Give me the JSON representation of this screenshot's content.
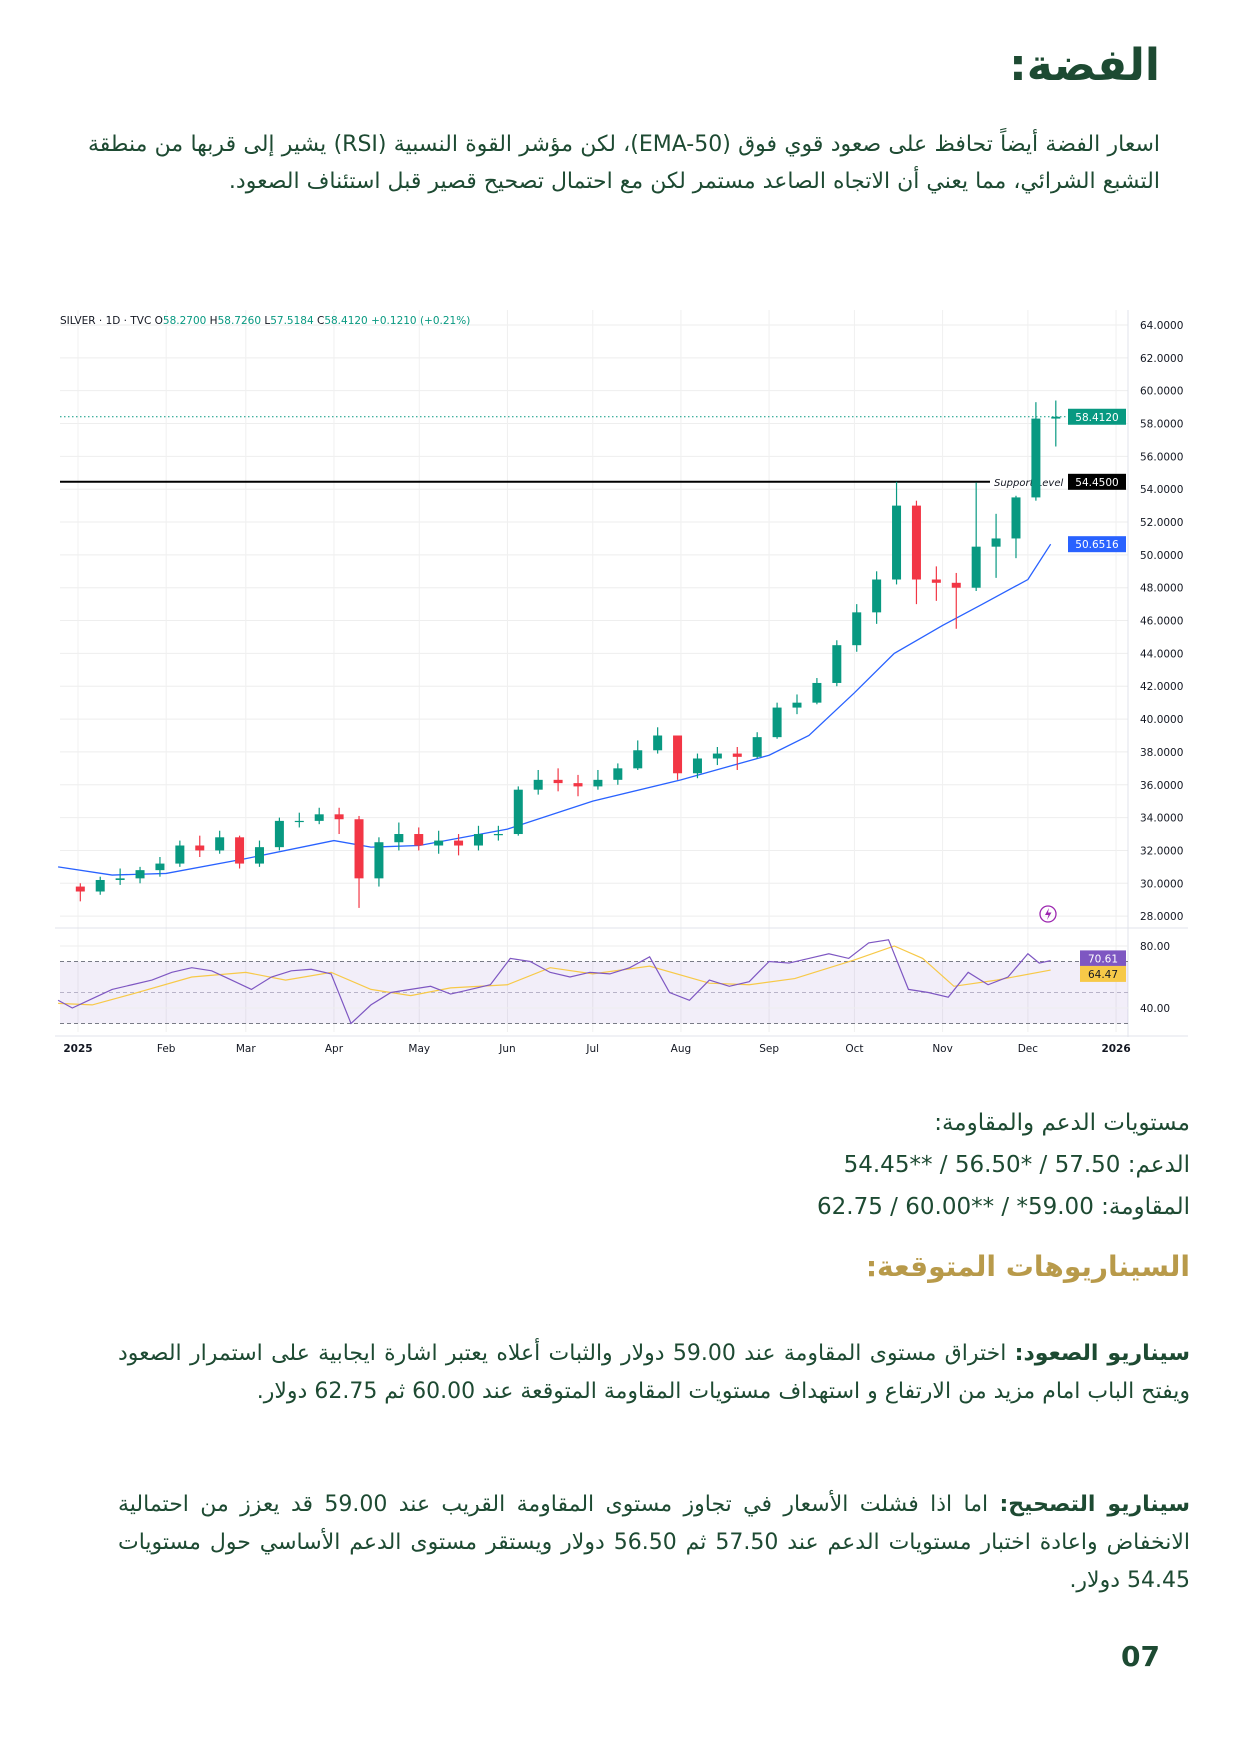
{
  "title": "الفضة:",
  "intro": "اسعار الفضة أيضاً تحافظ على صعود قوي فوق (EMA-50)، لكن مؤشر القوة النسبية (RSI) يشير إلى قربها من منطقة التشبع الشرائي، مما يعني أن الاتجاه الصاعد مستمر لكن مع احتمال تصحيح قصير قبل استئناف الصعود.",
  "levels": {
    "heading": "مستويات الدعم والمقاومة:",
    "support": "الدعم: 57.50 / *56.50 / **54.45",
    "resistance": "المقاومة: 59.00* / **60.00 / 62.75"
  },
  "scenarios_title": "السيناريوهات المتوقعة:",
  "scenarios": [
    {
      "label": "سيناريو الصعود:",
      "text": " اختراق مستوى المقاومة عند 59.00 دولار والثبات أعلاه يعتبر اشارة ايجابية على استمرار الصعود ويفتح الباب امام مزيد من الارتفاع و استهداف مستويات المقاومة المتوقعة عند 60.00 ثم 62.75 دولار."
    },
    {
      "label": "سيناريو التصحيح:",
      "text": " اما اذا فشلت الأسعار في تجاوز مستوى المقاومة القريب عند 59.00 قد يعزز من احتمالية الانخفاض واعادة اختبار مستويات الدعم عند 57.50 ثم 56.50 دولار ويستقر مستوى الدعم الأساسي حول مستويات 54.45 دولار."
    }
  ],
  "page_number": "07",
  "chart_data": {
    "type": "candlestick",
    "header": {
      "symbol": "SILVER · 1D · TVC",
      "o_label": "O",
      "o": "58.2700",
      "h_label": "H",
      "h": "58.7260",
      "l_label": "L",
      "l": "57.5184",
      "c_label": "C",
      "c": "58.4120",
      "change": "+0.1210 (+0.21%)"
    },
    "y_ticks": [
      "64.0000",
      "62.0000",
      "60.0000",
      "58.0000",
      "56.0000",
      "54.0000",
      "52.0000",
      "50.0000",
      "48.0000",
      "46.0000",
      "44.0000",
      "42.0000",
      "40.0000",
      "38.0000",
      "36.0000",
      "34.0000",
      "32.0000",
      "30.0000",
      "28.0000"
    ],
    "ylim": [
      28,
      64
    ],
    "x_ticks": [
      [
        "2025",
        "2025-01-01"
      ],
      [
        "Feb",
        "2025-02-01"
      ],
      [
        "Mar",
        "2025-03-01"
      ],
      [
        "Apr",
        "2025-04-01"
      ],
      [
        "May",
        "2025-05-01"
      ],
      [
        "Jun",
        "2025-06-01"
      ],
      [
        "Jul",
        "2025-07-01"
      ],
      [
        "Aug",
        "2025-08-01"
      ],
      [
        "Sep",
        "2025-09-01"
      ],
      [
        "Oct",
        "2025-10-01"
      ],
      [
        "Nov",
        "2025-11-01"
      ],
      [
        "Dec",
        "2025-12-01"
      ],
      [
        "2026",
        "2026-01-01"
      ]
    ],
    "candles": [
      [
        "2024-12-30",
        29.8,
        30.0,
        28.9,
        29.5
      ],
      [
        "2025-01-06",
        29.5,
        30.4,
        29.3,
        30.2
      ],
      [
        "2025-01-13",
        30.2,
        30.9,
        29.9,
        30.3
      ],
      [
        "2025-01-20",
        30.3,
        31.0,
        30.0,
        30.8
      ],
      [
        "2025-01-27",
        30.8,
        31.6,
        30.4,
        31.2
      ],
      [
        "2025-02-03",
        31.2,
        32.6,
        31.0,
        32.3
      ],
      [
        "2025-02-10",
        32.3,
        32.9,
        31.6,
        32.0
      ],
      [
        "2025-02-17",
        32.0,
        33.2,
        31.8,
        32.8
      ],
      [
        "2025-02-24",
        32.8,
        32.9,
        30.9,
        31.2
      ],
      [
        "2025-03-03",
        31.2,
        32.6,
        31.0,
        32.2
      ],
      [
        "2025-03-10",
        32.2,
        34.0,
        32.0,
        33.8
      ],
      [
        "2025-03-17",
        33.8,
        34.3,
        33.4,
        33.8
      ],
      [
        "2025-03-24",
        33.8,
        34.6,
        33.6,
        34.2
      ],
      [
        "2025-03-31",
        34.2,
        34.6,
        33.0,
        33.9
      ],
      [
        "2025-04-07",
        33.9,
        34.1,
        28.5,
        30.3
      ],
      [
        "2025-04-14",
        30.3,
        32.8,
        29.8,
        32.5
      ],
      [
        "2025-04-21",
        32.5,
        33.7,
        32.0,
        33.0
      ],
      [
        "2025-04-28",
        33.0,
        33.4,
        32.0,
        32.3
      ],
      [
        "2025-05-05",
        32.3,
        33.2,
        31.8,
        32.6
      ],
      [
        "2025-05-12",
        32.6,
        33.0,
        31.7,
        32.3
      ],
      [
        "2025-05-19",
        32.3,
        33.5,
        32.0,
        33.0
      ],
      [
        "2025-05-26",
        33.0,
        33.5,
        32.6,
        33.0
      ],
      [
        "2025-06-02",
        33.0,
        35.9,
        32.9,
        35.7
      ],
      [
        "2025-06-09",
        35.7,
        36.9,
        35.4,
        36.3
      ],
      [
        "2025-06-16",
        36.3,
        37.0,
        35.6,
        36.1
      ],
      [
        "2025-06-23",
        36.1,
        36.6,
        35.3,
        35.9
      ],
      [
        "2025-06-30",
        35.9,
        36.9,
        35.7,
        36.3
      ],
      [
        "2025-07-07",
        36.3,
        37.3,
        36.0,
        37.0
      ],
      [
        "2025-07-14",
        37.0,
        38.7,
        36.9,
        38.1
      ],
      [
        "2025-07-21",
        38.1,
        39.5,
        37.9,
        39.0
      ],
      [
        "2025-07-28",
        39.0,
        39.0,
        36.3,
        36.7
      ],
      [
        "2025-08-04",
        36.7,
        37.9,
        36.4,
        37.6
      ],
      [
        "2025-08-11",
        37.6,
        38.3,
        37.2,
        37.9
      ],
      [
        "2025-08-18",
        37.9,
        38.3,
        36.9,
        37.7
      ],
      [
        "2025-08-25",
        37.7,
        39.2,
        37.6,
        38.9
      ],
      [
        "2025-09-01",
        38.9,
        41.0,
        38.8,
        40.7
      ],
      [
        "2025-09-08",
        40.7,
        41.5,
        40.3,
        41.0
      ],
      [
        "2025-09-15",
        41.0,
        42.5,
        40.9,
        42.2
      ],
      [
        "2025-09-22",
        42.2,
        44.8,
        42.0,
        44.5
      ],
      [
        "2025-09-29",
        44.5,
        47.0,
        44.1,
        46.5
      ],
      [
        "2025-10-06",
        46.5,
        49.0,
        45.8,
        48.5
      ],
      [
        "2025-10-13",
        48.5,
        54.45,
        48.2,
        53.0
      ],
      [
        "2025-10-20",
        53.0,
        53.3,
        47.0,
        48.5
      ],
      [
        "2025-10-27",
        48.5,
        49.3,
        47.2,
        48.3
      ],
      [
        "2025-11-03",
        48.3,
        48.9,
        45.5,
        48.0
      ],
      [
        "2025-11-10",
        48.0,
        54.4,
        47.8,
        50.5
      ],
      [
        "2025-11-17",
        50.5,
        52.5,
        48.6,
        51.0
      ],
      [
        "2025-11-24",
        51.0,
        53.6,
        49.8,
        53.5
      ],
      [
        "2025-12-01",
        53.5,
        59.3,
        53.3,
        58.3
      ],
      [
        "2025-12-08",
        58.3,
        59.4,
        56.6,
        58.412
      ]
    ],
    "ema50": {
      "label": "50.6516",
      "points": [
        [
          "2024-12-25",
          31.0
        ],
        [
          "2025-01-13",
          30.5
        ],
        [
          "2025-02-01",
          30.6
        ],
        [
          "2025-03-01",
          31.5
        ],
        [
          "2025-04-01",
          32.6
        ],
        [
          "2025-04-14",
          32.2
        ],
        [
          "2025-05-01",
          32.3
        ],
        [
          "2025-06-01",
          33.3
        ],
        [
          "2025-07-01",
          35.0
        ],
        [
          "2025-08-01",
          36.3
        ],
        [
          "2025-09-01",
          37.8
        ],
        [
          "2025-09-15",
          39.0
        ],
        [
          "2025-10-01",
          41.6
        ],
        [
          "2025-10-15",
          44.0
        ],
        [
          "2025-11-01",
          45.7
        ],
        [
          "2025-11-15",
          47.0
        ],
        [
          "2025-12-01",
          48.5
        ],
        [
          "2025-12-09",
          50.6516
        ]
      ]
    },
    "support_level": {
      "label": "Support Level",
      "value": 54.45,
      "badge": "54.4500"
    },
    "last_price": {
      "value": 58.412,
      "badge": "58.4120"
    },
    "rsi": {
      "ticks": [
        "80.00",
        "40.00"
      ],
      "bands": [
        70,
        50,
        30
      ],
      "ylim": [
        25,
        90
      ],
      "value_badge": "70.61",
      "ma_badge": "64.47",
      "points": [
        [
          "2024-12-25",
          45
        ],
        [
          "2024-12-30",
          40
        ],
        [
          "2025-01-06",
          46
        ],
        [
          "2025-01-13",
          52
        ],
        [
          "2025-01-20",
          55
        ],
        [
          "2025-01-27",
          58
        ],
        [
          "2025-02-03",
          63
        ],
        [
          "2025-02-10",
          66
        ],
        [
          "2025-02-17",
          64
        ],
        [
          "2025-02-24",
          58
        ],
        [
          "2025-03-03",
          52
        ],
        [
          "2025-03-10",
          60
        ],
        [
          "2025-03-17",
          64
        ],
        [
          "2025-03-24",
          65
        ],
        [
          "2025-03-31",
          62
        ],
        [
          "2025-04-07",
          30
        ],
        [
          "2025-04-14",
          42
        ],
        [
          "2025-04-21",
          50
        ],
        [
          "2025-04-28",
          52
        ],
        [
          "2025-05-05",
          54
        ],
        [
          "2025-05-12",
          49
        ],
        [
          "2025-05-19",
          52
        ],
        [
          "2025-05-26",
          55
        ],
        [
          "2025-06-02",
          72
        ],
        [
          "2025-06-09",
          70
        ],
        [
          "2025-06-16",
          63
        ],
        [
          "2025-06-23",
          60
        ],
        [
          "2025-06-30",
          63
        ],
        [
          "2025-07-07",
          62
        ],
        [
          "2025-07-14",
          66
        ],
        [
          "2025-07-21",
          73
        ],
        [
          "2025-07-28",
          50
        ],
        [
          "2025-08-04",
          45
        ],
        [
          "2025-08-11",
          58
        ],
        [
          "2025-08-18",
          54
        ],
        [
          "2025-08-25",
          57
        ],
        [
          "2025-09-01",
          70
        ],
        [
          "2025-09-08",
          69
        ],
        [
          "2025-09-15",
          72
        ],
        [
          "2025-09-22",
          75
        ],
        [
          "2025-09-29",
          72
        ],
        [
          "2025-10-06",
          82
        ],
        [
          "2025-10-13",
          84
        ],
        [
          "2025-10-20",
          52
        ],
        [
          "2025-10-27",
          50
        ],
        [
          "2025-11-03",
          47
        ],
        [
          "2025-11-10",
          63
        ],
        [
          "2025-11-17",
          55
        ],
        [
          "2025-11-24",
          60
        ],
        [
          "2025-12-01",
          75
        ],
        [
          "2025-12-05",
          69
        ],
        [
          "2025-12-09",
          70.61
        ]
      ],
      "ma_points": [
        [
          "2024-12-25",
          43
        ],
        [
          "2025-01-06",
          42
        ],
        [
          "2025-01-20",
          49
        ],
        [
          "2025-02-10",
          60
        ],
        [
          "2025-03-01",
          63
        ],
        [
          "2025-03-15",
          58
        ],
        [
          "2025-03-31",
          63
        ],
        [
          "2025-04-14",
          52
        ],
        [
          "2025-04-28",
          48
        ],
        [
          "2025-05-12",
          53
        ],
        [
          "2025-06-01",
          55
        ],
        [
          "2025-06-16",
          66
        ],
        [
          "2025-07-01",
          62
        ],
        [
          "2025-07-21",
          67
        ],
        [
          "2025-08-11",
          56
        ],
        [
          "2025-08-25",
          55
        ],
        [
          "2025-09-10",
          59
        ],
        [
          "2025-10-01",
          71
        ],
        [
          "2025-10-15",
          80
        ],
        [
          "2025-10-25",
          72
        ],
        [
          "2025-11-05",
          54
        ],
        [
          "2025-11-20",
          58
        ],
        [
          "2025-12-09",
          64.47
        ]
      ]
    },
    "colors": {
      "up": "#089981",
      "down": "#f23645",
      "ema": "#2962ff",
      "rsi": "#7e57c2",
      "rsi_ma": "#f7c948",
      "support": "#000000"
    }
  }
}
